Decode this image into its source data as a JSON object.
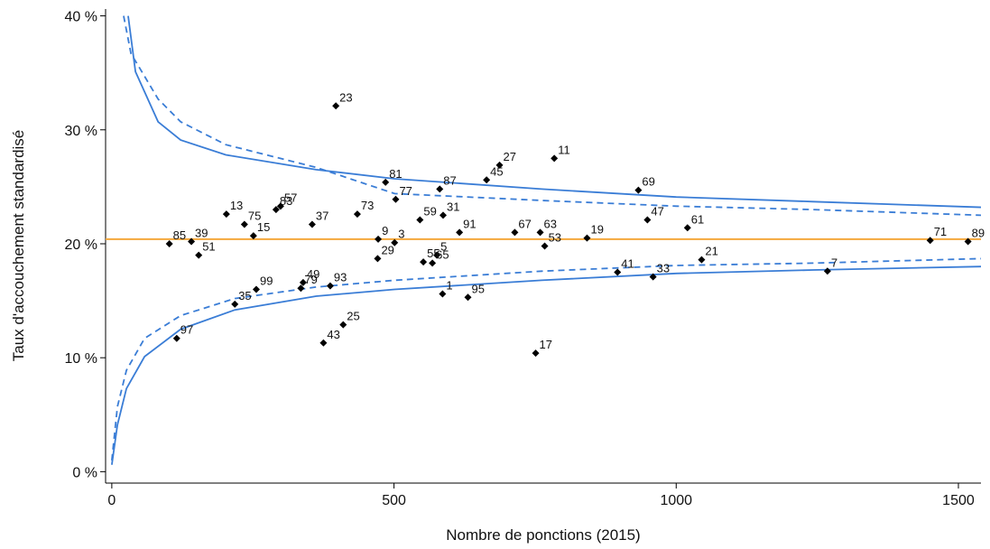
{
  "chart_data": {
    "type": "scatter",
    "x_label": "Nombre de ponctions (2015)",
    "y_label": "Taux d'accouchement standardisé",
    "xlim": [
      -11,
      1540
    ],
    "ylim": [
      -1,
      40.6
    ],
    "xticks": [
      0,
      500,
      1000,
      1500
    ],
    "yticks": [
      {
        "value": 0,
        "label": "0 %"
      },
      {
        "value": 10,
        "label": "10 %"
      },
      {
        "value": 20,
        "label": "20 %"
      },
      {
        "value": 30,
        "label": "30 %"
      },
      {
        "value": 40,
        "label": "40 %"
      }
    ],
    "reference_line": {
      "value": 20.4,
      "color": "#f5a83c"
    },
    "series": [
      {
        "type": "scatter",
        "color": "#000000",
        "labels": [
          "23",
          "11",
          "27",
          "45",
          "81",
          "87",
          "69",
          "13",
          "83",
          "57",
          "73",
          "77",
          "59",
          "31",
          "47",
          "37",
          "75",
          "15",
          "91",
          "67",
          "63",
          "61",
          "19",
          "85",
          "39",
          "51",
          "9",
          "3",
          "5",
          "55",
          "29",
          "65",
          "53",
          "71",
          "89",
          "21",
          "7",
          "41",
          "33",
          "49",
          "79",
          "93",
          "99",
          "35",
          "1",
          "95",
          "25",
          "43",
          "97",
          "17"
        ],
        "x": [
          397,
          784,
          687,
          664,
          485,
          581,
          933,
          203,
          291,
          299,
          435,
          503,
          546,
          587,
          949,
          355,
          235,
          251,
          616,
          714,
          759,
          1020,
          842,
          102,
          141,
          154,
          472,
          501,
          576,
          552,
          471,
          568,
          767,
          1450,
          1517,
          1045,
          1268,
          896,
          959,
          339,
          335,
          387,
          256,
          218,
          586,
          631,
          410,
          375,
          115,
          751
        ],
        "values": [
          32.1,
          27.5,
          26.9,
          25.6,
          25.4,
          24.8,
          24.7,
          22.6,
          23.0,
          23.3,
          22.6,
          23.9,
          22.1,
          22.5,
          22.1,
          21.7,
          21.7,
          20.7,
          21.0,
          21.0,
          21.0,
          21.4,
          20.5,
          20.0,
          20.2,
          19.0,
          20.4,
          20.1,
          19.0,
          18.4,
          18.7,
          18.3,
          19.8,
          20.3,
          20.2,
          18.6,
          17.6,
          17.5,
          17.1,
          16.6,
          16.1,
          16.3,
          16.0,
          14.7,
          15.6,
          15.3,
          12.9,
          11.3,
          11.7,
          10.4
        ]
      },
      {
        "type": "line",
        "style": "solid",
        "color": "#3a7dd6",
        "x": [
          29,
          42,
          82,
          122,
          202,
          362,
          501,
          762,
          1000,
          1242,
          1541
        ],
        "values": [
          40.0,
          35.1,
          30.7,
          29.1,
          27.8,
          26.5,
          25.7,
          24.8,
          24.1,
          23.7,
          23.2
        ]
      },
      {
        "type": "line",
        "style": "solid",
        "color": "#3a7dd6",
        "x": [
          0,
          10,
          26,
          58,
          122,
          218,
          362,
          501,
          762,
          1000,
          1242,
          1541
        ],
        "values": [
          0.6,
          4.1,
          7.3,
          10.1,
          12.5,
          14.2,
          15.4,
          16.0,
          16.8,
          17.4,
          17.7,
          18.0
        ]
      },
      {
        "type": "line",
        "style": "dashed",
        "color": "#3a7dd6",
        "x": [
          21,
          34,
          82,
          122,
          202,
          362,
          501,
          762,
          1000,
          1242,
          1541
        ],
        "values": [
          40.0,
          36.7,
          32.7,
          30.7,
          28.7,
          26.7,
          24.4,
          23.8,
          23.3,
          23.0,
          22.5
        ]
      },
      {
        "type": "line",
        "style": "dashed",
        "color": "#3a7dd6",
        "x": [
          0,
          10,
          26,
          58,
          122,
          218,
          362,
          501,
          762,
          1000,
          1242,
          1541
        ],
        "values": [
          1.0,
          5.7,
          8.9,
          11.7,
          13.7,
          15.2,
          16.2,
          16.8,
          17.6,
          18.1,
          18.3,
          18.7
        ]
      }
    ]
  }
}
